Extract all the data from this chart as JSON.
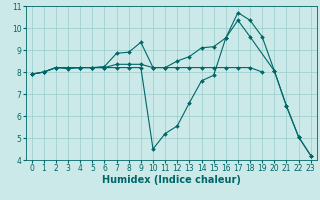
{
  "xlabel": "Humidex (Indice chaleur)",
  "bg_color": "#cce9e9",
  "line_color": "#006666",
  "grid_color": "#99cccc",
  "xlim": [
    -0.5,
    23.5
  ],
  "ylim": [
    4,
    11
  ],
  "xticks": [
    0,
    1,
    2,
    3,
    4,
    5,
    6,
    7,
    8,
    9,
    10,
    11,
    12,
    13,
    14,
    15,
    16,
    17,
    18,
    19,
    20,
    21,
    22,
    23
  ],
  "yticks": [
    4,
    5,
    6,
    7,
    8,
    9,
    10,
    11
  ],
  "lines": [
    {
      "x": [
        0,
        1,
        2,
        3,
        4,
        5,
        6,
        7,
        8,
        9,
        10,
        11,
        12,
        13,
        14,
        15,
        16,
        17,
        18,
        19
      ],
      "y": [
        7.9,
        8.0,
        8.2,
        8.2,
        8.2,
        8.2,
        8.25,
        8.85,
        8.9,
        9.35,
        8.2,
        8.2,
        8.2,
        8.2,
        8.2,
        8.2,
        8.2,
        8.2,
        8.2,
        8.0
      ]
    },
    {
      "x": [
        0,
        1,
        2,
        3,
        4,
        5,
        6,
        7,
        8,
        9,
        10,
        11,
        12,
        13,
        14,
        15,
        16,
        17,
        18,
        19,
        20,
        21,
        22,
        23
      ],
      "y": [
        7.9,
        8.0,
        8.2,
        8.2,
        8.2,
        8.2,
        8.2,
        8.2,
        8.2,
        8.2,
        4.5,
        5.2,
        5.55,
        6.6,
        7.6,
        7.85,
        9.55,
        10.7,
        10.35,
        9.6,
        8.05,
        6.45,
        5.05,
        4.2
      ]
    },
    {
      "x": [
        0,
        1,
        2,
        3,
        4,
        5,
        6,
        7,
        8,
        9,
        10,
        11,
        12,
        13,
        14,
        15,
        16,
        17,
        18,
        20,
        21,
        22,
        23
      ],
      "y": [
        7.9,
        8.0,
        8.2,
        8.15,
        8.2,
        8.2,
        8.2,
        8.35,
        8.35,
        8.35,
        8.2,
        8.2,
        8.5,
        8.7,
        9.1,
        9.15,
        9.55,
        10.35,
        9.6,
        8.05,
        6.45,
        5.05,
        4.2
      ]
    }
  ],
  "axis_fontsize": 7,
  "tick_fontsize": 5.5
}
